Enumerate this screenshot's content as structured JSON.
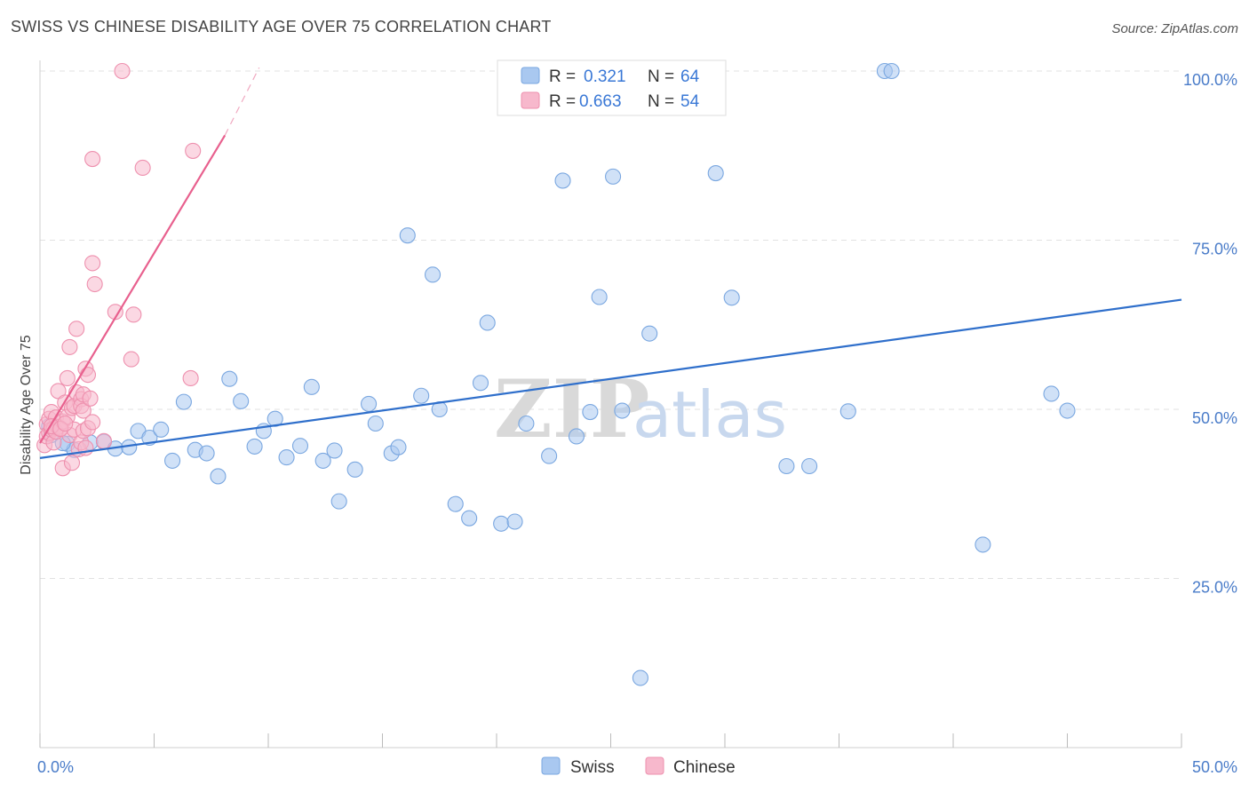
{
  "header": {
    "title": "SWISS VS CHINESE DISABILITY AGE OVER 75 CORRELATION CHART",
    "source": "Source: ZipAtlas.com"
  },
  "legend": {
    "r_label": "R =",
    "n_label": "N =",
    "swiss": {
      "r": "0.321",
      "n": "64"
    },
    "chinese": {
      "r": "0.663",
      "n": "54"
    }
  },
  "watermark": {
    "zip": "ZIP",
    "atlas": "atlas"
  },
  "colors": {
    "swiss_fill": "#a9c8f0",
    "swiss_stroke": "#7aa7e0",
    "swiss_line": "#2f6fcb",
    "chinese_fill": "#f7b8cc",
    "chinese_stroke": "#ee90ae",
    "chinese_line": "#e8608e"
  },
  "chart_data": {
    "type": "scatter",
    "title": "SWISS VS CHINESE DISABILITY AGE OVER 75 CORRELATION CHART",
    "xlabel": "",
    "ylabel": "Disability Age Over 75",
    "xlim": [
      0,
      50
    ],
    "ylim": [
      0,
      104
    ],
    "x_tick_labels": [
      "0.0%",
      "50.0%"
    ],
    "y_ticks": [
      25,
      50,
      75,
      100
    ],
    "y_tick_labels": [
      "25.0%",
      "50.0%",
      "75.0%",
      "100.0%"
    ],
    "grid": "horizontal dashed",
    "legend_placement": "top-center",
    "series": [
      {
        "name": "Swiss",
        "trend": [
          [
            0,
            42.8
          ],
          [
            50,
            66.2
          ]
        ],
        "points": [
          [
            0.4,
            47.5
          ],
          [
            1.2,
            44.9
          ],
          [
            1.5,
            44.0
          ],
          [
            2.8,
            45.2
          ],
          [
            3.3,
            44.2
          ],
          [
            3.9,
            44.4
          ],
          [
            4.3,
            46.8
          ],
          [
            4.8,
            45.8
          ],
          [
            5.3,
            47.0
          ],
          [
            5.8,
            42.4
          ],
          [
            6.3,
            51.1
          ],
          [
            6.8,
            44.0
          ],
          [
            7.3,
            43.5
          ],
          [
            7.8,
            40.1
          ],
          [
            8.3,
            54.5
          ],
          [
            8.8,
            51.2
          ],
          [
            9.4,
            44.5
          ],
          [
            9.8,
            46.8
          ],
          [
            10.3,
            48.6
          ],
          [
            10.8,
            42.9
          ],
          [
            11.4,
            44.6
          ],
          [
            11.9,
            53.3
          ],
          [
            12.4,
            42.4
          ],
          [
            12.9,
            43.9
          ],
          [
            13.1,
            36.4
          ],
          [
            13.8,
            41.1
          ],
          [
            14.4,
            50.8
          ],
          [
            14.7,
            47.9
          ],
          [
            15.4,
            43.5
          ],
          [
            15.7,
            44.4
          ],
          [
            16.1,
            75.7
          ],
          [
            16.7,
            52.0
          ],
          [
            17.2,
            69.9
          ],
          [
            17.5,
            50.0
          ],
          [
            18.2,
            36.0
          ],
          [
            18.8,
            33.9
          ],
          [
            19.3,
            53.9
          ],
          [
            19.6,
            62.8
          ],
          [
            20.2,
            33.1
          ],
          [
            20.8,
            33.4
          ],
          [
            21.3,
            47.9
          ],
          [
            22.3,
            43.1
          ],
          [
            22.9,
            83.8
          ],
          [
            23.5,
            46.0
          ],
          [
            24.1,
            49.6
          ],
          [
            24.5,
            66.6
          ],
          [
            25.1,
            84.4
          ],
          [
            25.5,
            49.8
          ],
          [
            26.3,
            10.3
          ],
          [
            26.7,
            61.2
          ],
          [
            27.0,
            100.0
          ],
          [
            29.6,
            84.9
          ],
          [
            30.3,
            66.5
          ],
          [
            32.7,
            41.6
          ],
          [
            33.7,
            41.6
          ],
          [
            35.4,
            49.7
          ],
          [
            37.0,
            100.0
          ],
          [
            37.3,
            100.0
          ],
          [
            41.3,
            30.0
          ],
          [
            44.3,
            52.3
          ],
          [
            45.0,
            49.8
          ],
          [
            0.5,
            46.2
          ],
          [
            1.0,
            45.0
          ],
          [
            2.2,
            45.1
          ]
        ]
      },
      {
        "name": "Chinese",
        "trend": [
          [
            0,
            45.0
          ],
          [
            8.1,
            90.5
          ]
        ],
        "trend_dashed": [
          [
            8.1,
            90.5
          ],
          [
            9.6,
            100.5
          ]
        ],
        "points": [
          [
            0.2,
            44.7
          ],
          [
            0.3,
            46.0
          ],
          [
            0.3,
            47.8
          ],
          [
            0.4,
            48.6
          ],
          [
            0.4,
            46.5
          ],
          [
            0.5,
            47.0
          ],
          [
            0.5,
            49.6
          ],
          [
            0.6,
            47.1
          ],
          [
            0.6,
            45.1
          ],
          [
            0.7,
            46.7
          ],
          [
            0.7,
            48.8
          ],
          [
            0.8,
            52.7
          ],
          [
            0.8,
            47.4
          ],
          [
            0.9,
            47.2
          ],
          [
            1.0,
            41.3
          ],
          [
            1.0,
            48.2
          ],
          [
            1.1,
            51.0
          ],
          [
            1.2,
            54.6
          ],
          [
            1.2,
            48.9
          ],
          [
            1.3,
            46.2
          ],
          [
            1.3,
            59.2
          ],
          [
            1.4,
            50.2
          ],
          [
            1.4,
            42.1
          ],
          [
            1.5,
            50.5
          ],
          [
            1.5,
            47.0
          ],
          [
            1.6,
            61.9
          ],
          [
            1.6,
            52.5
          ],
          [
            1.7,
            44.1
          ],
          [
            1.8,
            51.5
          ],
          [
            1.8,
            45.1
          ],
          [
            1.8,
            50.5
          ],
          [
            1.9,
            49.8
          ],
          [
            1.9,
            52.2
          ],
          [
            1.9,
            46.8
          ],
          [
            2.0,
            56.0
          ],
          [
            2.0,
            44.3
          ],
          [
            2.1,
            55.1
          ],
          [
            2.1,
            47.2
          ],
          [
            2.2,
            51.6
          ],
          [
            2.3,
            48.1
          ],
          [
            2.3,
            71.6
          ],
          [
            2.3,
            87.0
          ],
          [
            2.4,
            68.5
          ],
          [
            2.8,
            45.3
          ],
          [
            3.3,
            64.4
          ],
          [
            3.6,
            100.0
          ],
          [
            4.0,
            57.4
          ],
          [
            4.1,
            64.0
          ],
          [
            4.5,
            85.7
          ],
          [
            6.6,
            54.6
          ],
          [
            6.7,
            88.2
          ],
          [
            0.5,
            47.5
          ],
          [
            0.9,
            47.1
          ],
          [
            1.1,
            47.9
          ]
        ]
      }
    ]
  },
  "bottom_legend": {
    "swiss": "Swiss",
    "chinese": "Chinese"
  }
}
